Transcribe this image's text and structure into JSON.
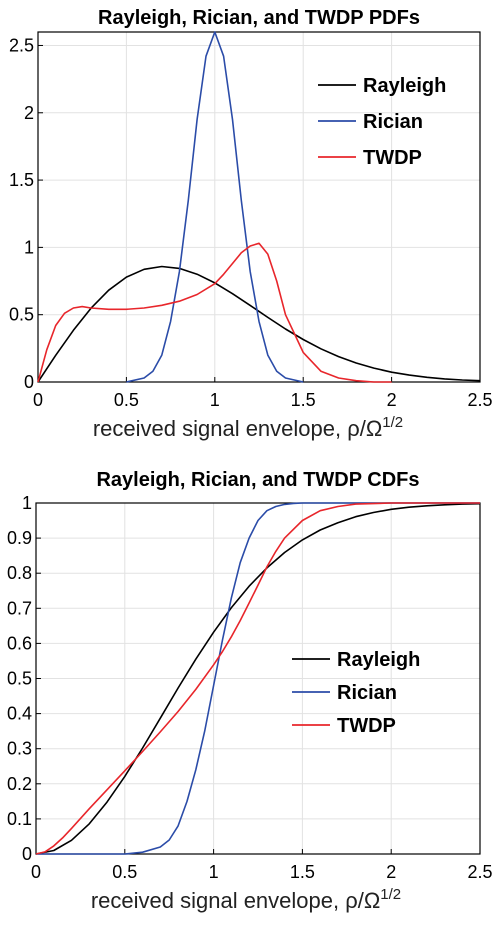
{
  "chart_data": [
    {
      "type": "line",
      "title": "Rayleigh, Rician, and TWDP PDFs",
      "xlabel": "received signal envelope, ρ/Ω",
      "xlabel_exponent": "1/2",
      "xlim": [
        0,
        2.5
      ],
      "ylim": [
        0,
        2.6
      ],
      "xticks": [
        0,
        0.5,
        1,
        1.5,
        2,
        2.5
      ],
      "xtick_labels": [
        "0",
        "0.5",
        "1",
        "1.5",
        "2",
        "2.5"
      ],
      "yticks": [
        0,
        0.5,
        1,
        1.5,
        2,
        2.5
      ],
      "ytick_labels": [
        "0",
        "0.5",
        "1",
        "1.5",
        "2",
        "2.5"
      ],
      "grid": true,
      "legend_position": "top-right",
      "series": [
        {
          "name": "Rayleigh",
          "color": "#000000",
          "x": [
            0,
            0.1,
            0.2,
            0.3,
            0.4,
            0.5,
            0.6,
            0.7,
            0.8,
            0.9,
            1.0,
            1.1,
            1.2,
            1.3,
            1.4,
            1.5,
            1.6,
            1.7,
            1.8,
            1.9,
            2.0,
            2.1,
            2.2,
            2.3,
            2.4,
            2.5
          ],
          "y": [
            0,
            0.198,
            0.384,
            0.548,
            0.682,
            0.779,
            0.837,
            0.858,
            0.844,
            0.801,
            0.736,
            0.656,
            0.569,
            0.48,
            0.394,
            0.316,
            0.247,
            0.189,
            0.141,
            0.103,
            0.073,
            0.051,
            0.035,
            0.023,
            0.015,
            0.01
          ]
        },
        {
          "name": "Rician",
          "color": "#2b4ca8",
          "x": [
            0.5,
            0.6,
            0.65,
            0.7,
            0.75,
            0.8,
            0.85,
            0.9,
            0.95,
            1.0,
            1.05,
            1.1,
            1.15,
            1.2,
            1.25,
            1.3,
            1.35,
            1.4,
            1.5
          ],
          "y": [
            0,
            0.03,
            0.08,
            0.2,
            0.45,
            0.82,
            1.35,
            1.95,
            2.42,
            2.6,
            2.42,
            1.95,
            1.35,
            0.82,
            0.45,
            0.2,
            0.08,
            0.03,
            0
          ]
        },
        {
          "name": "TWDP",
          "color": "#e8262b",
          "x": [
            0,
            0.05,
            0.1,
            0.15,
            0.2,
            0.25,
            0.3,
            0.4,
            0.5,
            0.6,
            0.7,
            0.8,
            0.9,
            1.0,
            1.05,
            1.1,
            1.15,
            1.2,
            1.25,
            1.3,
            1.35,
            1.4,
            1.5,
            1.6,
            1.7,
            1.8,
            1.9,
            2.0
          ],
          "y": [
            0,
            0.24,
            0.42,
            0.51,
            0.55,
            0.56,
            0.55,
            0.54,
            0.54,
            0.55,
            0.57,
            0.6,
            0.65,
            0.73,
            0.8,
            0.88,
            0.96,
            1.01,
            1.03,
            0.95,
            0.75,
            0.5,
            0.22,
            0.08,
            0.03,
            0.01,
            0,
            0
          ]
        }
      ]
    },
    {
      "type": "line",
      "title": "Rayleigh, Rician, and TWDP CDFs",
      "xlabel": "received signal envelope, ρ/Ω",
      "xlabel_exponent": "1/2",
      "xlim": [
        0,
        2.5
      ],
      "ylim": [
        0,
        1
      ],
      "xticks": [
        0,
        0.5,
        1,
        1.5,
        2,
        2.5
      ],
      "xtick_labels": [
        "0",
        "0.5",
        "1",
        "1.5",
        "2",
        "2.5"
      ],
      "yticks": [
        0,
        0.1,
        0.2,
        0.3,
        0.4,
        0.5,
        0.6,
        0.7,
        0.8,
        0.9,
        1
      ],
      "ytick_labels": [
        "0",
        "0.1",
        "0.2",
        "0.3",
        "0.4",
        "0.5",
        "0.6",
        "0.7",
        "0.8",
        "0.9",
        "1"
      ],
      "grid": true,
      "legend_position": "center-right",
      "series": [
        {
          "name": "Rayleigh",
          "color": "#000000",
          "x": [
            0,
            0.1,
            0.2,
            0.3,
            0.4,
            0.5,
            0.6,
            0.7,
            0.8,
            0.9,
            1.0,
            1.1,
            1.2,
            1.3,
            1.4,
            1.5,
            1.6,
            1.7,
            1.8,
            1.9,
            2.0,
            2.1,
            2.2,
            2.3,
            2.4,
            2.5
          ],
          "y": [
            0,
            0.01,
            0.039,
            0.086,
            0.148,
            0.221,
            0.302,
            0.387,
            0.473,
            0.555,
            0.632,
            0.702,
            0.763,
            0.815,
            0.859,
            0.895,
            0.923,
            0.944,
            0.961,
            0.973,
            0.982,
            0.988,
            0.992,
            0.995,
            0.997,
            0.998
          ]
        },
        {
          "name": "Rician",
          "color": "#2b4ca8",
          "x": [
            0,
            0.5,
            0.6,
            0.7,
            0.75,
            0.8,
            0.85,
            0.9,
            0.95,
            1.0,
            1.05,
            1.1,
            1.15,
            1.2,
            1.25,
            1.3,
            1.35,
            1.4,
            1.45,
            1.5,
            2.5
          ],
          "y": [
            0,
            0,
            0.005,
            0.02,
            0.04,
            0.08,
            0.15,
            0.24,
            0.35,
            0.48,
            0.61,
            0.73,
            0.83,
            0.9,
            0.95,
            0.978,
            0.99,
            0.996,
            0.999,
            1,
            1
          ]
        },
        {
          "name": "TWDP",
          "color": "#e8262b",
          "x": [
            0,
            0.05,
            0.1,
            0.15,
            0.2,
            0.3,
            0.4,
            0.5,
            0.6,
            0.7,
            0.8,
            0.9,
            1.0,
            1.05,
            1.1,
            1.15,
            1.2,
            1.25,
            1.3,
            1.35,
            1.4,
            1.5,
            1.6,
            1.7,
            1.8,
            2.0,
            2.5
          ],
          "y": [
            0,
            0.006,
            0.023,
            0.046,
            0.073,
            0.129,
            0.183,
            0.237,
            0.292,
            0.348,
            0.406,
            0.469,
            0.539,
            0.577,
            0.619,
            0.665,
            0.715,
            0.766,
            0.818,
            0.862,
            0.9,
            0.95,
            0.978,
            0.99,
            0.997,
            1,
            1
          ]
        }
      ]
    }
  ]
}
